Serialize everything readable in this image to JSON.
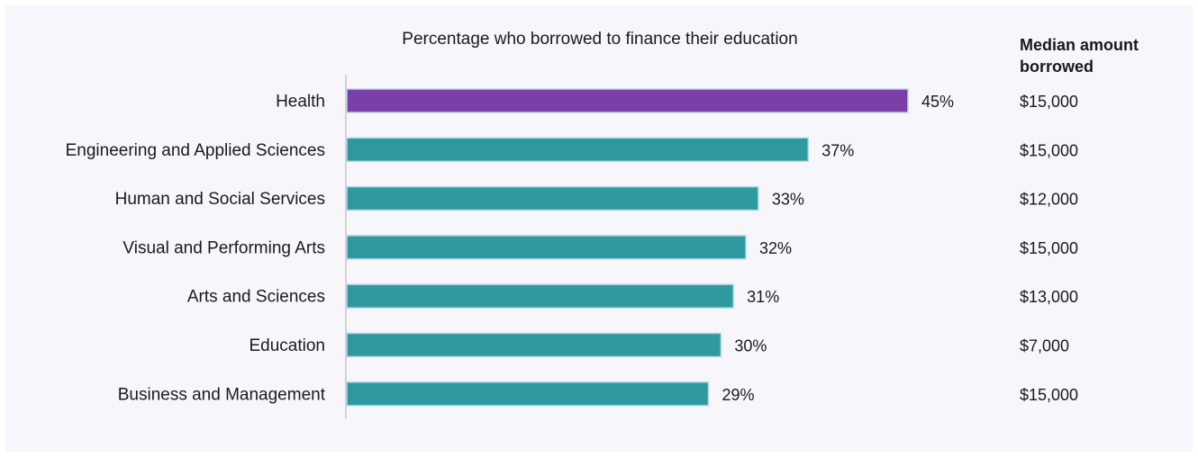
{
  "chart_data": {
    "type": "bar",
    "orientation": "horizontal",
    "title": "Percentage who borrowed to finance their education",
    "categories": [
      "Health",
      "Engineering and Applied Sciences",
      "Human and Social Services",
      "Visual and Performing Arts",
      "Arts and Sciences",
      "Education",
      "Business and Management"
    ],
    "values": [
      45,
      37,
      33,
      32,
      31,
      30,
      29
    ],
    "value_labels": [
      "45%",
      "37%",
      "33%",
      "32%",
      "31%",
      "30%",
      "29%"
    ],
    "unit": "%",
    "xlim": [
      0,
      45
    ],
    "grid": false,
    "legend": "none",
    "highlight_index": 0,
    "colors": {
      "highlight": "#7b3fa8",
      "default": "#2e9aa0",
      "bar_border": "#b9d3e8",
      "axis": "#c8c8c8",
      "background": "#f7f7fb"
    },
    "median_column": {
      "header_line1": "Median amount",
      "header_line2": "borrowed",
      "values": [
        "$15,000",
        "$15,000",
        "$12,000",
        "$15,000",
        "$13,000",
        "$7,000",
        "$15,000"
      ]
    }
  }
}
